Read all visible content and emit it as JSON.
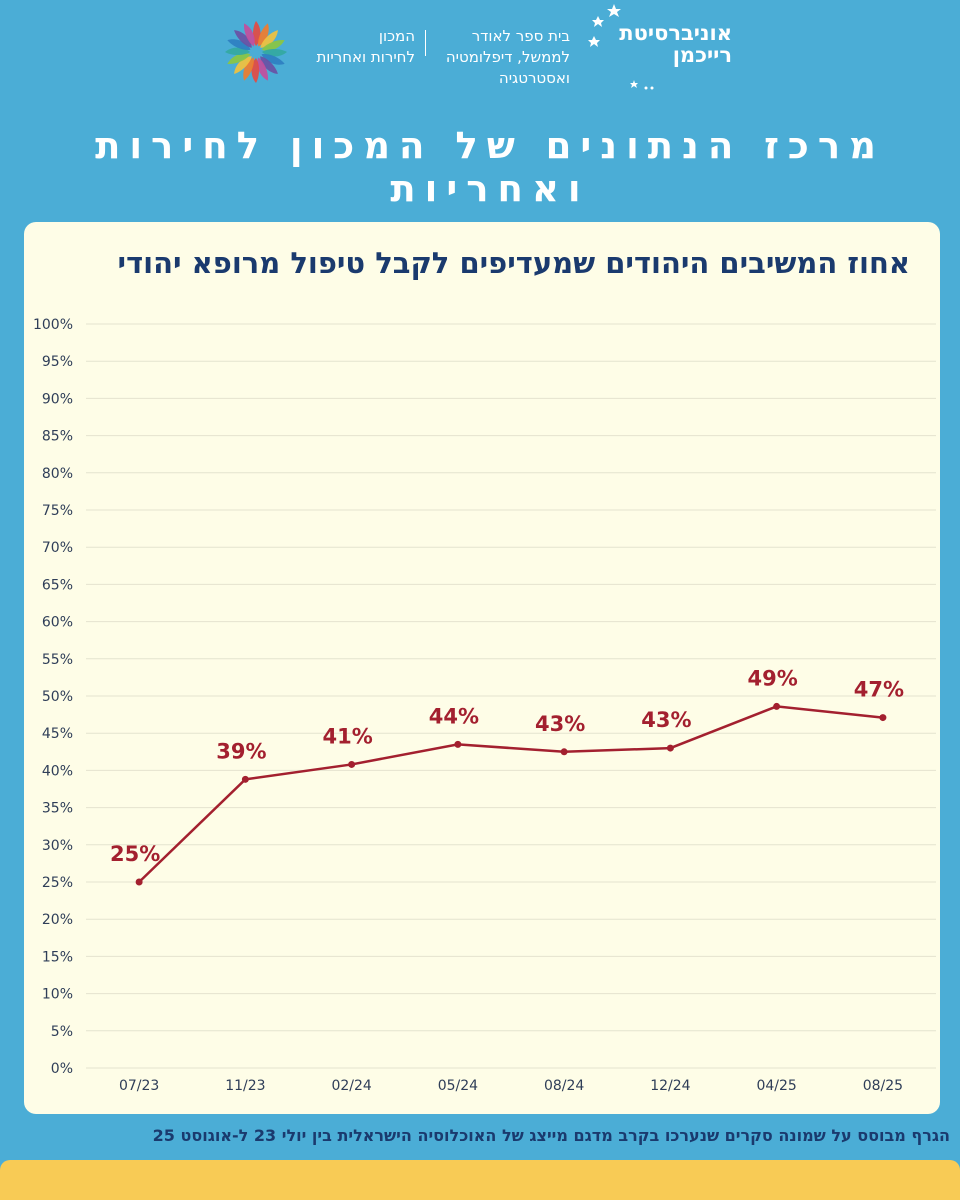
{
  "header": {
    "university": [
      "אוניברסיטת",
      "רייכמן"
    ],
    "school": [
      "בית ספר לאודר",
      "לממשל, דיפלומטיה",
      "ואסטרטגיה"
    ],
    "institute": [
      "המכון",
      "לחירות ואחריות"
    ]
  },
  "center_title": "מרכז הנתונים של המכון לחירות ואחריות",
  "footnote": "הגרף מבוסס על שמונה סקרים שנערכו בקרב מדגם מייצג של האוכלוסיה הישראלית בין יולי 23 ל-אוגוסט 25",
  "colors": {
    "background": "#4badd6",
    "card": "#fefde7",
    "line": "#a3202f",
    "title": "#1a3a6e",
    "bar": "#f8cb55"
  },
  "chart_data": {
    "type": "line",
    "title": "אחוז המשיבים היהודים שמעדיפים לקבל טיפול מרופא יהודי",
    "categories": [
      "07/23",
      "11/23",
      "02/24",
      "05/24",
      "08/24",
      "12/24",
      "04/25",
      "08/25"
    ],
    "values": [
      25,
      38.8,
      40.8,
      43.5,
      42.5,
      43,
      48.6,
      47.1
    ],
    "data_labels": [
      "25%",
      "39%",
      "41%",
      "44%",
      "43%",
      "43%",
      "49%",
      "47%"
    ],
    "ylim": [
      0,
      100
    ],
    "ytick_step": 5,
    "ytick_suffix": "%",
    "grid": true
  }
}
